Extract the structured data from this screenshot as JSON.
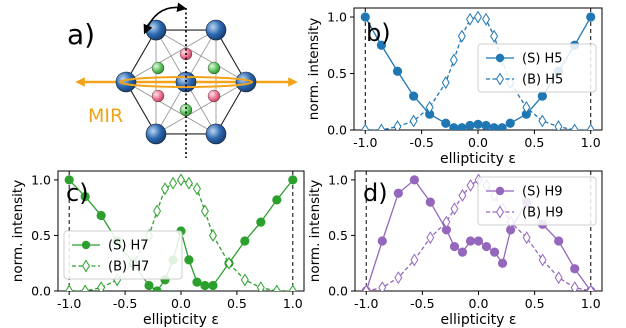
{
  "panel_labels": {
    "a": "a)",
    "b": "b)",
    "c": "c)",
    "d": "d)"
  },
  "schematic": {
    "label": "MIR",
    "label_color": "#f2a31a",
    "lattice_colors": {
      "large_atom": "#2c68b0",
      "green_atom": "#59c35a",
      "pink_atom": "#ea6f8e",
      "beam": "#f2a31a"
    }
  },
  "axis_text": {
    "xlabel": "ellipticity ε",
    "ylabel": "norm. intensity"
  },
  "chart_data": [
    {
      "type": "line",
      "panel": "b)",
      "harmonic": "H5",
      "color": "#1f77b4",
      "xlim": [
        -1.1,
        1.1
      ],
      "ylim": [
        0,
        1.08
      ],
      "xticks": [
        -1.0,
        -0.5,
        0.0,
        0.5,
        1.0
      ],
      "yticks": [
        0.0,
        0.5,
        1.0
      ],
      "xlabel": "ellipticity ε",
      "ylabel": "norm. intensity",
      "legend_position": "right",
      "vlines": [
        -1.0,
        1.0
      ],
      "x": [
        -1.0,
        -0.857,
        -0.714,
        -0.571,
        -0.429,
        -0.286,
        -0.214,
        -0.143,
        -0.071,
        0.0,
        0.071,
        0.143,
        0.214,
        0.286,
        0.429,
        0.571,
        0.714,
        0.857,
        1.0
      ],
      "series": [
        {
          "name": "(S) H5",
          "style": "solid",
          "marker": "circle",
          "values": [
            1.0,
            0.75,
            0.52,
            0.3,
            0.14,
            0.06,
            0.02,
            0.02,
            0.04,
            0.05,
            0.04,
            0.02,
            0.02,
            0.06,
            0.14,
            0.3,
            0.52,
            0.75,
            1.0
          ]
        },
        {
          "name": "(B) H5",
          "style": "dashed",
          "marker": "diamond",
          "values": [
            0.0,
            0.0,
            0.03,
            0.08,
            0.2,
            0.42,
            0.62,
            0.83,
            0.98,
            1.0,
            0.98,
            0.83,
            0.62,
            0.42,
            0.2,
            0.08,
            0.03,
            0.0,
            0.0
          ]
        }
      ]
    },
    {
      "type": "line",
      "panel": "c)",
      "harmonic": "H7",
      "color": "#2ca02c",
      "xlim": [
        -1.1,
        1.1
      ],
      "ylim": [
        0,
        1.08
      ],
      "xticks": [
        -1.0,
        -0.5,
        0.0,
        0.5,
        1.0
      ],
      "yticks": [
        0.0,
        0.5,
        1.0
      ],
      "xlabel": "ellipticity ε",
      "ylabel": "norm. intensity",
      "legend_position": "lower-left",
      "vlines": [
        -1.0,
        1.0
      ],
      "x": [
        -1.0,
        -0.857,
        -0.714,
        -0.571,
        -0.429,
        -0.286,
        -0.214,
        -0.143,
        -0.071,
        0.0,
        0.071,
        0.143,
        0.214,
        0.286,
        0.429,
        0.571,
        0.714,
        0.857,
        1.0
      ],
      "series": [
        {
          "name": "(S) H7",
          "style": "solid",
          "marker": "circle",
          "values": [
            1.0,
            0.85,
            0.68,
            0.45,
            0.25,
            0.05,
            0.0,
            0.1,
            0.28,
            0.54,
            0.28,
            0.08,
            0.05,
            0.05,
            0.25,
            0.45,
            0.62,
            0.82,
            1.0
          ]
        },
        {
          "name": "(B) H7",
          "style": "dashed",
          "marker": "diamond",
          "values": [
            0.0,
            0.0,
            0.03,
            0.1,
            0.25,
            0.5,
            0.72,
            0.92,
            0.97,
            1.0,
            0.97,
            0.92,
            0.72,
            0.5,
            0.25,
            0.1,
            0.03,
            0.0,
            0.0
          ]
        }
      ]
    },
    {
      "type": "line",
      "panel": "d)",
      "harmonic": "H9",
      "color": "#9467bd",
      "xlim": [
        -1.1,
        1.1
      ],
      "ylim": [
        0,
        1.08
      ],
      "xticks": [
        -1.0,
        -0.5,
        0.0,
        0.5,
        1.0
      ],
      "yticks": [
        0.0,
        0.5,
        1.0
      ],
      "xlabel": "ellipticity ε",
      "ylabel": "norm. intensity",
      "legend_position": "top-right",
      "vlines": [
        -1.0,
        1.0
      ],
      "x": [
        -1.0,
        -0.857,
        -0.714,
        -0.571,
        -0.429,
        -0.286,
        -0.214,
        -0.143,
        -0.071,
        0.0,
        0.071,
        0.143,
        0.214,
        0.286,
        0.429,
        0.571,
        0.714,
        0.857,
        1.0
      ],
      "series": [
        {
          "name": "(S) H9",
          "style": "solid",
          "marker": "circle",
          "values": [
            0.0,
            0.45,
            0.88,
            1.0,
            0.8,
            0.55,
            0.4,
            0.35,
            0.45,
            0.45,
            0.4,
            0.35,
            0.25,
            0.55,
            0.8,
            0.6,
            0.45,
            0.2,
            0.0
          ]
        },
        {
          "name": "(B) H9",
          "style": "dashed",
          "marker": "diamond",
          "values": [
            0.0,
            0.03,
            0.12,
            0.28,
            0.48,
            0.62,
            0.74,
            0.86,
            0.95,
            1.0,
            0.95,
            0.86,
            0.74,
            0.62,
            0.48,
            0.28,
            0.12,
            0.03,
            0.0
          ]
        }
      ]
    }
  ]
}
